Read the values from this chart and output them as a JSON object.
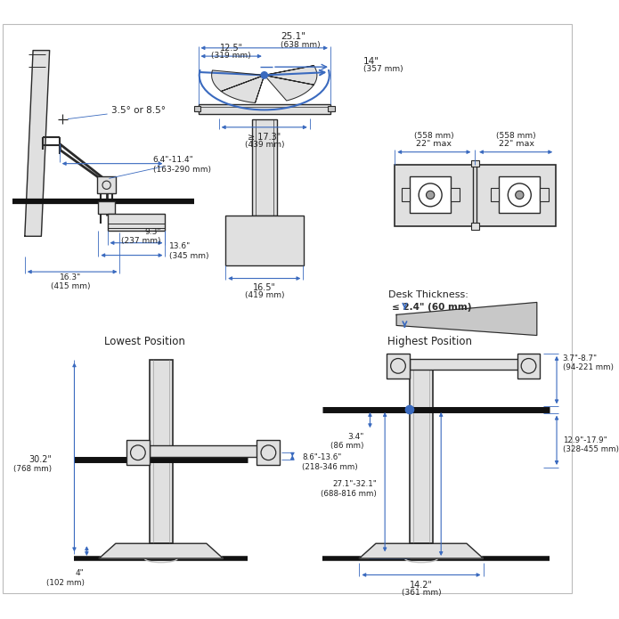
{
  "bg_color": "#ffffff",
  "lc": "#2a2a2a",
  "bc": "#3a6abf",
  "gray1": "#c8c8c8",
  "gray2": "#e0e0e0",
  "gray3": "#a0a0a0",
  "s1_title": "",
  "s1_tilt": "3.5° or 8.5°",
  "s1_arm": "6.4\"-11.4\"\n(163-290 mm)",
  "s1_d1": "9.3\"\n(237 mm)",
  "s1_d2": "13.6\"\n(345 mm)",
  "s1_w1": "16.3\"\n(415 mm)",
  "s2_w25": "25.1\"",
  "s2_w25b": "(638 mm)",
  "s2_w12": "12.5\"",
  "s2_w12b": "(319 mm)",
  "s2_w14": "14\"",
  "s2_w14b": "(357 mm)",
  "s2_w17": "≥ 17.3\"",
  "s2_w17b": "(439 mm)",
  "s2_w16": "16.5\"",
  "s2_w16b": "(419 mm)",
  "s3_a22l": "22\" max",
  "s3_a22lb": "(558 mm)",
  "s3_a22r": "22\" max",
  "s3_a22rb": "(558 mm)",
  "s4_title": "Desk Thickness:",
  "s4_val": "≤ 2.4\" (60 mm)",
  "s5_title": "Lowest Position",
  "s5_h30": "30.2\"",
  "s5_h30b": "(768 mm)",
  "s5_arm": "8.6\"-13.6\"",
  "s5_armb": "(218-346 mm)",
  "s5_base": "4\"",
  "s5_baseb": "(102 mm)",
  "s6_title": "Highest Position",
  "s6_top": "3.7\"-8.7\"",
  "s6_topb": "(94-221 mm)",
  "s6_arm": "12.9\"-17.9\"",
  "s6_armb": "(328-455 mm)",
  "s6_col": "27.1\"-32.1\"",
  "s6_colb": "(688-816 mm)",
  "s6_base": "3.4\"",
  "s6_baseb": "(86 mm)",
  "s6_foot": "14.2\"",
  "s6_footb": "(361 mm)"
}
